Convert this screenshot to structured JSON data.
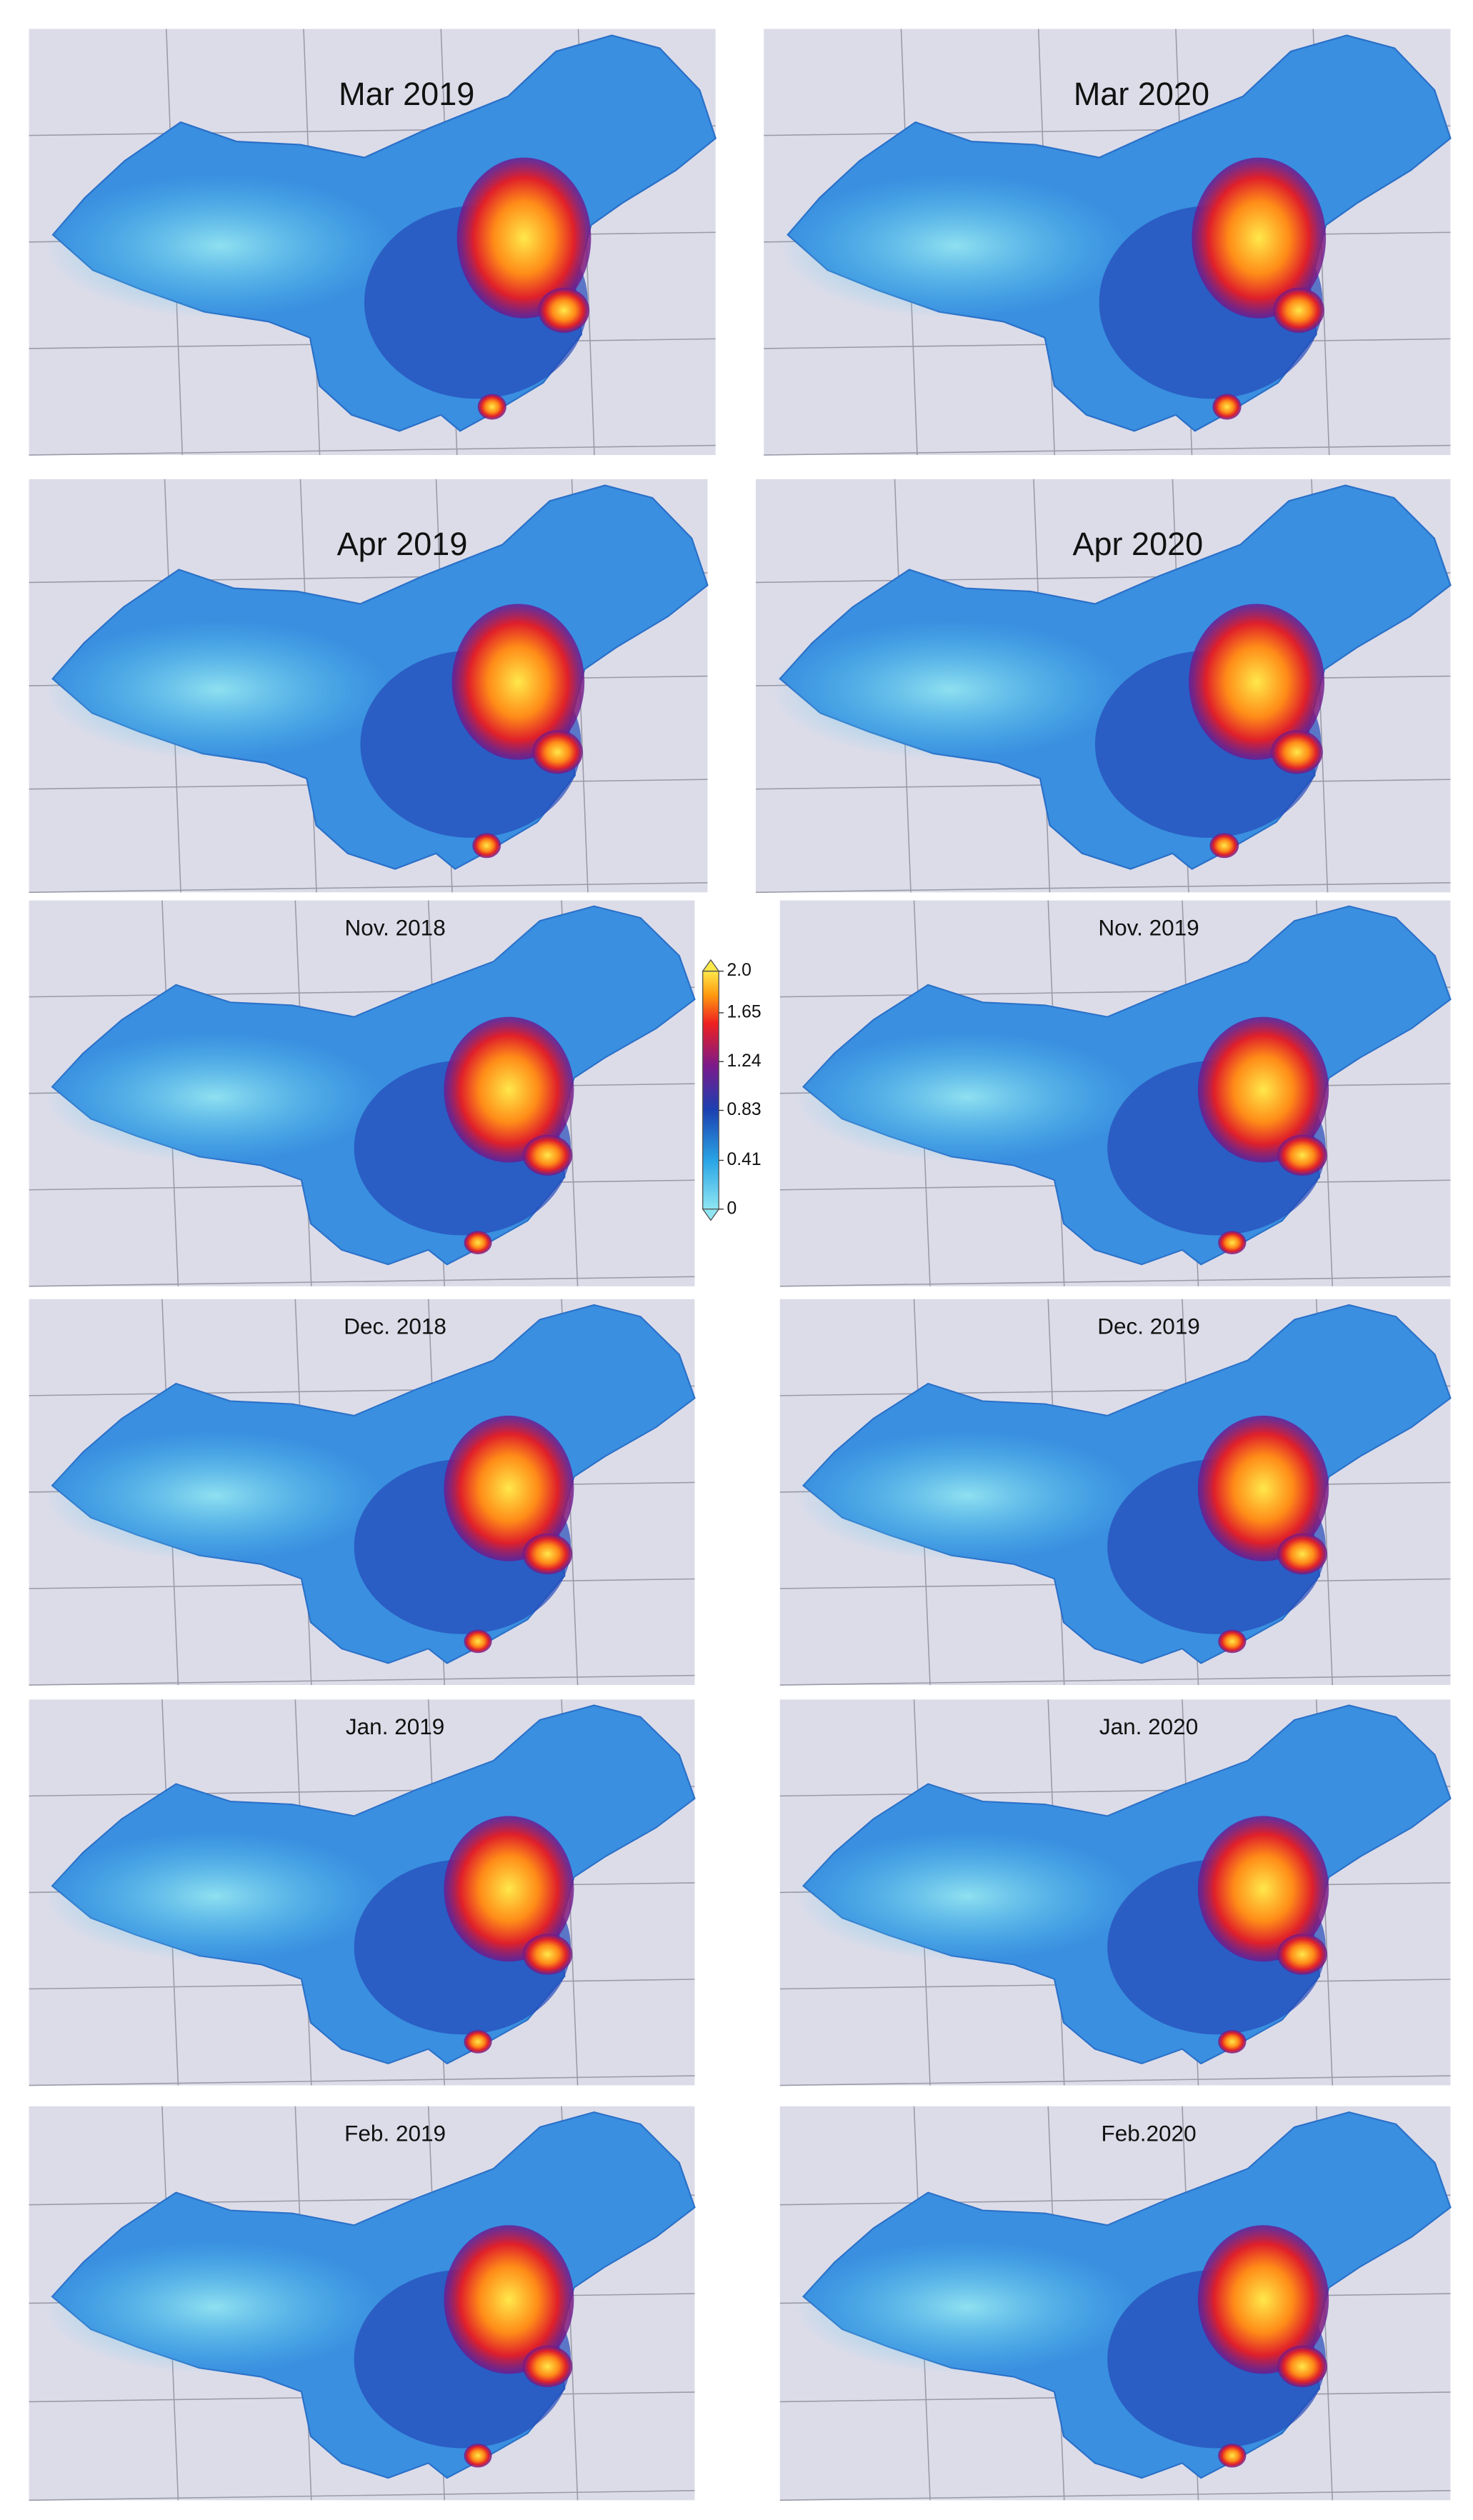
{
  "panels": [
    {
      "title": "Mar 2019"
    },
    {
      "title": "Mar 2020"
    },
    {
      "title": "Apr 2019"
    },
    {
      "title": "Apr 2020"
    },
    {
      "title": "Nov. 2018"
    },
    {
      "title": "Nov. 2019"
    },
    {
      "title": "Dec. 2018"
    },
    {
      "title": "Dec. 2019"
    },
    {
      "title": "Jan. 2019"
    },
    {
      "title": "Jan. 2020"
    },
    {
      "title": "Feb. 2019"
    },
    {
      "title": "Feb.2020"
    }
  ],
  "colorbar": {
    "lim": [
      0,
      2
    ],
    "ticks": [
      0,
      0.41,
      0.83,
      1.24,
      1.65,
      {
        "value": 2,
        "label": "2.0"
      }
    ]
  }
}
